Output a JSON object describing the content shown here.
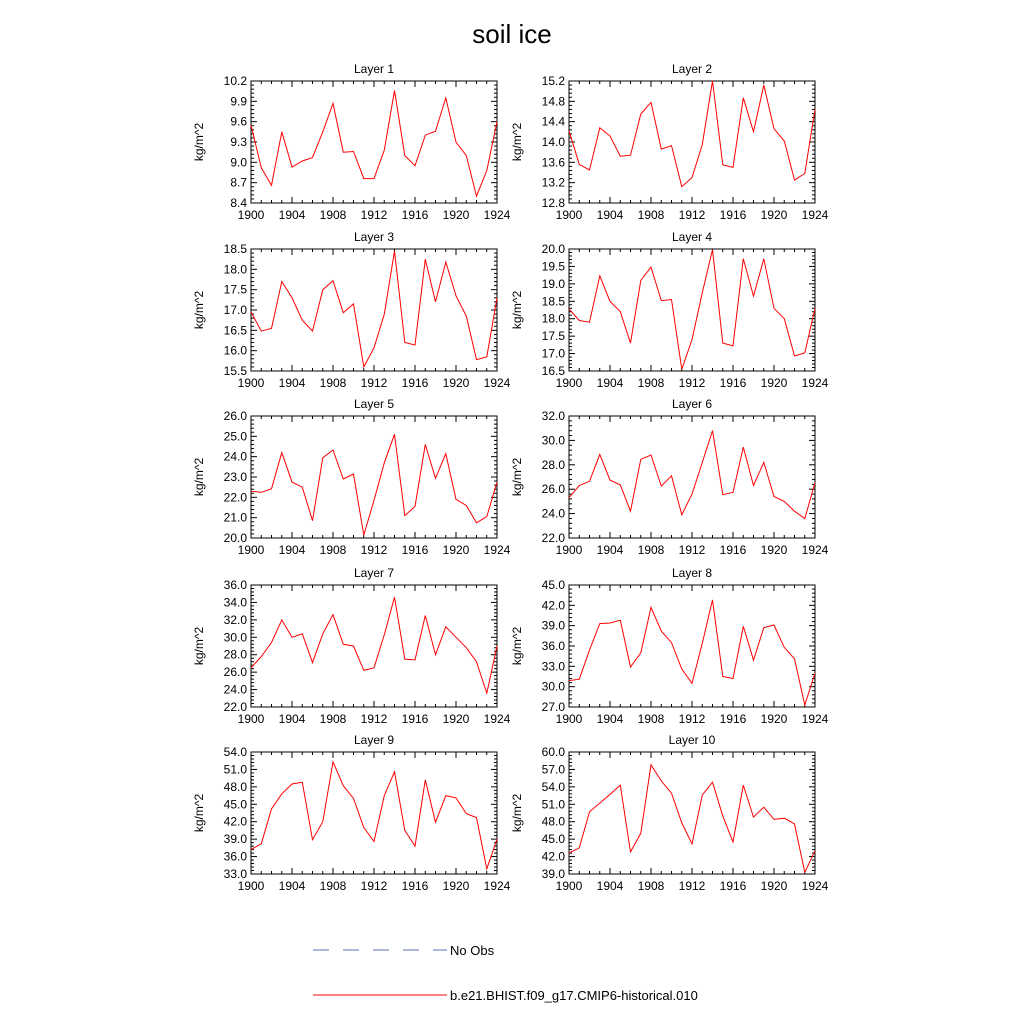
{
  "title": "soil ice",
  "legend": {
    "obs_label": "No Obs",
    "model_label": "b.e21.BHIST.f09_g17.CMIP6-historical.010",
    "obs_color": "#5b6bb5",
    "model_color": "#ff0000"
  },
  "chart_data": [
    {
      "type": "line",
      "title": "Layer 1",
      "ylabel": "kg/m^2",
      "xlim": [
        1900,
        1924
      ],
      "xticks": [
        1900,
        1904,
        1908,
        1912,
        1916,
        1920,
        1924
      ],
      "ylim": [
        8.4,
        10.2
      ],
      "yticks": [
        "8.4",
        "8.7",
        "9.0",
        "9.3",
        "9.6",
        "9.9",
        "10.2"
      ],
      "series": [
        {
          "name": "b.e21.BHIST.f09_g17.CMIP6-historical.010",
          "values": [
            9.55,
            8.92,
            8.66,
            9.45,
            8.93,
            9.02,
            9.07,
            9.45,
            9.87,
            9.15,
            9.16,
            8.76,
            8.76,
            9.18,
            10.06,
            9.1,
            8.95,
            9.4,
            9.46,
            9.95,
            9.3,
            9.1,
            8.5,
            8.88,
            9.6
          ]
        }
      ]
    },
    {
      "type": "line",
      "title": "Layer 2",
      "ylabel": "kg/m^2",
      "xlim": [
        1900,
        1924
      ],
      "xticks": [
        1900,
        1904,
        1908,
        1912,
        1916,
        1920,
        1924
      ],
      "ylim": [
        12.8,
        15.2
      ],
      "yticks": [
        "12.8",
        "13.2",
        "13.6",
        "14.0",
        "14.4",
        "14.8",
        "15.2"
      ],
      "series": [
        {
          "name": "b.e21.BHIST.f09_g17.CMIP6-historical.010",
          "values": [
            14.22,
            13.56,
            13.45,
            14.28,
            14.12,
            13.72,
            13.74,
            14.55,
            14.78,
            13.86,
            13.93,
            13.12,
            13.3,
            13.95,
            15.2,
            13.55,
            13.5,
            14.87,
            14.2,
            15.12,
            14.26,
            14.02,
            13.25,
            13.38,
            14.65
          ]
        }
      ]
    },
    {
      "type": "line",
      "title": "Layer 3",
      "ylabel": "kg/m^2",
      "xlim": [
        1900,
        1924
      ],
      "xticks": [
        1900,
        1904,
        1908,
        1912,
        1916,
        1920,
        1924
      ],
      "ylim": [
        15.5,
        18.5
      ],
      "yticks": [
        "15.5",
        "16.0",
        "16.5",
        "17.0",
        "17.5",
        "18.0",
        "18.5"
      ],
      "series": [
        {
          "name": "b.e21.BHIST.f09_g17.CMIP6-historical.010",
          "values": [
            16.95,
            16.48,
            16.55,
            17.7,
            17.3,
            16.75,
            16.48,
            17.5,
            17.72,
            16.93,
            17.15,
            15.6,
            16.07,
            16.9,
            18.45,
            16.2,
            16.14,
            18.25,
            17.2,
            18.18,
            17.35,
            16.85,
            15.78,
            15.85,
            17.3
          ]
        }
      ]
    },
    {
      "type": "line",
      "title": "Layer 4",
      "ylabel": "kg/m^2",
      "xlim": [
        1900,
        1924
      ],
      "xticks": [
        1900,
        1904,
        1908,
        1912,
        1916,
        1920,
        1924
      ],
      "ylim": [
        16.5,
        20.0
      ],
      "yticks": [
        "16.5",
        "17.0",
        "17.5",
        "18.0",
        "18.5",
        "19.0",
        "19.5",
        "20.0"
      ],
      "series": [
        {
          "name": "b.e21.BHIST.f09_g17.CMIP6-historical.010",
          "values": [
            18.28,
            17.95,
            17.9,
            19.23,
            18.5,
            18.2,
            17.3,
            19.1,
            19.48,
            18.52,
            18.55,
            16.55,
            17.4,
            18.75,
            19.98,
            17.3,
            17.22,
            19.72,
            18.65,
            19.72,
            18.3,
            18.0,
            16.93,
            17.02,
            18.3
          ]
        }
      ]
    },
    {
      "type": "line",
      "title": "Layer 5",
      "ylabel": "kg/m^2",
      "xlim": [
        1900,
        1924
      ],
      "xticks": [
        1900,
        1904,
        1908,
        1912,
        1916,
        1920,
        1924
      ],
      "ylim": [
        20.0,
        26.0
      ],
      "yticks": [
        "20.0",
        "21.0",
        "22.0",
        "23.0",
        "24.0",
        "25.0",
        "26.0"
      ],
      "series": [
        {
          "name": "b.e21.BHIST.f09_g17.CMIP6-historical.010",
          "values": [
            22.3,
            22.25,
            22.42,
            24.2,
            22.75,
            22.5,
            20.85,
            23.95,
            24.33,
            22.9,
            23.15,
            20.15,
            21.85,
            23.7,
            25.1,
            21.1,
            21.55,
            24.6,
            22.93,
            24.15,
            21.9,
            21.6,
            20.75,
            21.05,
            22.75
          ]
        }
      ]
    },
    {
      "type": "line",
      "title": "Layer 6",
      "ylabel": "kg/m^2",
      "xlim": [
        1900,
        1924
      ],
      "xticks": [
        1900,
        1904,
        1908,
        1912,
        1916,
        1920,
        1924
      ],
      "ylim": [
        22.0,
        32.0
      ],
      "yticks": [
        "22.0",
        "24.0",
        "26.0",
        "28.0",
        "30.0",
        "32.0"
      ],
      "series": [
        {
          "name": "b.e21.BHIST.f09_g17.CMIP6-historical.010",
          "values": [
            25.3,
            26.3,
            26.65,
            28.85,
            26.75,
            26.35,
            24.2,
            28.45,
            28.8,
            26.25,
            27.1,
            23.9,
            25.6,
            28.2,
            30.8,
            25.55,
            25.75,
            29.45,
            26.3,
            28.2,
            25.4,
            25.0,
            24.2,
            23.6,
            26.55
          ]
        }
      ]
    },
    {
      "type": "line",
      "title": "Layer 7",
      "ylabel": "kg/m^2",
      "xlim": [
        1900,
        1924
      ],
      "xticks": [
        1900,
        1904,
        1908,
        1912,
        1916,
        1920,
        1924
      ],
      "ylim": [
        22.0,
        36.0
      ],
      "yticks": [
        "22.0",
        "24.0",
        "26.0",
        "28.0",
        "30.0",
        "32.0",
        "34.0",
        "36.0"
      ],
      "series": [
        {
          "name": "b.e21.BHIST.f09_g17.CMIP6-historical.010",
          "values": [
            26.5,
            27.8,
            29.4,
            32.0,
            30.0,
            30.4,
            27.1,
            30.4,
            32.6,
            29.2,
            29.0,
            26.2,
            26.5,
            30.3,
            34.6,
            27.5,
            27.4,
            32.5,
            28.0,
            31.2,
            30.0,
            28.8,
            27.2,
            23.6,
            29.0
          ]
        }
      ]
    },
    {
      "type": "line",
      "title": "Layer 8",
      "ylabel": "kg/m^2",
      "xlim": [
        1900,
        1924
      ],
      "xticks": [
        1900,
        1904,
        1908,
        1912,
        1916,
        1920,
        1924
      ],
      "ylim": [
        27.0,
        45.0
      ],
      "yticks": [
        "27.0",
        "30.0",
        "33.0",
        "36.0",
        "39.0",
        "42.0",
        "45.0"
      ],
      "series": [
        {
          "name": "b.e21.BHIST.f09_g17.CMIP6-historical.010",
          "values": [
            30.9,
            31.1,
            35.4,
            39.3,
            39.4,
            39.8,
            32.9,
            35.0,
            41.7,
            38.2,
            36.5,
            32.6,
            30.5,
            36.4,
            42.8,
            31.5,
            31.2,
            38.9,
            33.9,
            38.7,
            39.1,
            35.8,
            34.1,
            27.3,
            32.0
          ]
        }
      ]
    },
    {
      "type": "line",
      "title": "Layer 9",
      "ylabel": "kg/m^2",
      "xlim": [
        1900,
        1924
      ],
      "xticks": [
        1900,
        1904,
        1908,
        1912,
        1916,
        1920,
        1924
      ],
      "ylim": [
        33.0,
        54.0
      ],
      "yticks": [
        "33.0",
        "36.0",
        "39.0",
        "42.0",
        "45.0",
        "48.0",
        "51.0",
        "54.0"
      ],
      "series": [
        {
          "name": "b.e21.BHIST.f09_g17.CMIP6-historical.010",
          "values": [
            37.2,
            38.2,
            44.2,
            46.8,
            48.5,
            48.8,
            38.9,
            42.0,
            52.3,
            48.2,
            46.0,
            41.0,
            38.6,
            46.5,
            50.6,
            40.5,
            37.8,
            49.2,
            41.9,
            46.5,
            46.1,
            43.4,
            42.7,
            33.9,
            39.0
          ]
        }
      ]
    },
    {
      "type": "line",
      "title": "Layer 10",
      "ylabel": "kg/m^2",
      "xlim": [
        1900,
        1924
      ],
      "xticks": [
        1900,
        1904,
        1908,
        1912,
        1916,
        1920,
        1924
      ],
      "ylim": [
        39.0,
        60.0
      ],
      "yticks": [
        "39.0",
        "42.0",
        "45.0",
        "48.0",
        "51.0",
        "54.0",
        "57.0",
        "60.0"
      ],
      "series": [
        {
          "name": "b.e21.BHIST.f09_g17.CMIP6-historical.010",
          "values": [
            42.6,
            43.5,
            49.7,
            51.2,
            52.7,
            54.3,
            42.8,
            46.0,
            57.8,
            55.0,
            52.9,
            47.8,
            44.2,
            52.6,
            54.8,
            49.0,
            44.5,
            54.3,
            48.8,
            50.5,
            48.4,
            48.6,
            47.6,
            39.3,
            43.0
          ]
        }
      ]
    }
  ]
}
